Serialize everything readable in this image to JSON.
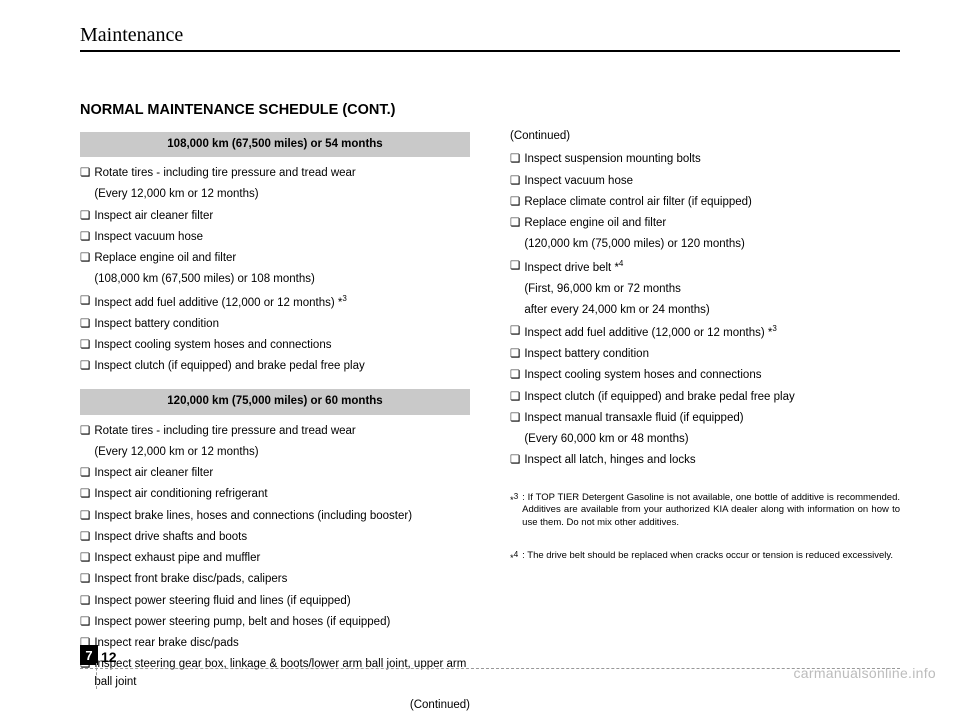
{
  "header": {
    "title": "Maintenance"
  },
  "section_title": "NORMAL MAINTENANCE SCHEDULE (CONT.)",
  "block1": {
    "head": "108,000 km (67,500 miles) or 54 months",
    "items": [
      {
        "t": "Rotate tires - including tire pressure and tread wear",
        "sub": "(Every 12,000 km or 12 months)"
      },
      {
        "t": "Inspect air cleaner filter"
      },
      {
        "t": "Inspect vacuum hose"
      },
      {
        "t": "Replace engine oil and filter",
        "sub": "(108,000 km (67,500 miles) or 108 months)"
      },
      {
        "t": "Inspect add fuel additive (12,000 or 12 months) *",
        "sup": "3"
      },
      {
        "t": "Inspect battery condition"
      },
      {
        "t": "Inspect cooling system hoses and connections"
      },
      {
        "t": "Inspect clutch (if equipped) and brake pedal free play"
      }
    ]
  },
  "block2": {
    "head": "120,000 km (75,000 miles) or 60 months",
    "items": [
      {
        "t": "Rotate tires - including tire pressure and tread wear",
        "sub": "(Every 12,000 km or 12 months)"
      },
      {
        "t": "Inspect air cleaner filter"
      },
      {
        "t": "Inspect air conditioning refrigerant"
      },
      {
        "t": "Inspect brake lines, hoses and connections (including booster)"
      },
      {
        "t": "Inspect drive shafts and boots"
      },
      {
        "t": "Inspect exhaust pipe and muffler"
      },
      {
        "t": "Inspect front brake disc/pads, calipers"
      },
      {
        "t": "Inspect power steering fluid and lines (if equipped)"
      },
      {
        "t": "Inspect power steering pump, belt and hoses (if equipped)"
      },
      {
        "t": "Inspect rear brake disc/pads"
      },
      {
        "t": "Inspect steering gear box, linkage & boots/lower arm ball joint, upper arm ball joint"
      }
    ],
    "continued": "(Continued)"
  },
  "right": {
    "continued_top": "(Continued)",
    "items": [
      {
        "t": "Inspect suspension mounting bolts"
      },
      {
        "t": "Inspect vacuum hose"
      },
      {
        "t": "Replace climate control air filter (if equipped)"
      },
      {
        "t": "Replace engine oil and filter",
        "sub": "(120,000 km (75,000 miles) or 120 months)"
      },
      {
        "t": "Inspect drive belt *",
        "sup": "4",
        "sub": "(First, 96,000 km or 72 months",
        "sub2": " after every 24,000 km or 24 months)"
      },
      {
        "t": "Inspect add fuel additive (12,000 or 12 months) *",
        "sup": "3"
      },
      {
        "t": "Inspect battery condition"
      },
      {
        "t": "Inspect cooling system hoses and connections"
      },
      {
        "t": "Inspect clutch (if equipped) and brake pedal free play"
      },
      {
        "t": "Inspect manual transaxle fluid (if equipped)",
        "sub": "(Every 60,000 km or 48 months)"
      },
      {
        "t": "Inspect all latch, hinges and locks"
      }
    ],
    "footnotes": [
      {
        "mark": "*",
        "sup": "3",
        "txt": ": If TOP TIER Detergent Gasoline is not available, one bottle of additive is recommended. Additives are available from your authorized KIA dealer along with information on how to use them. Do not mix other additives."
      },
      {
        "mark": "*",
        "sup": "4",
        "txt": ": The drive belt should be replaced when cracks occur or tension is reduced excessively."
      }
    ]
  },
  "footer": {
    "chapter": "7",
    "page": "12"
  },
  "watermark": "carmanualsonline.info"
}
